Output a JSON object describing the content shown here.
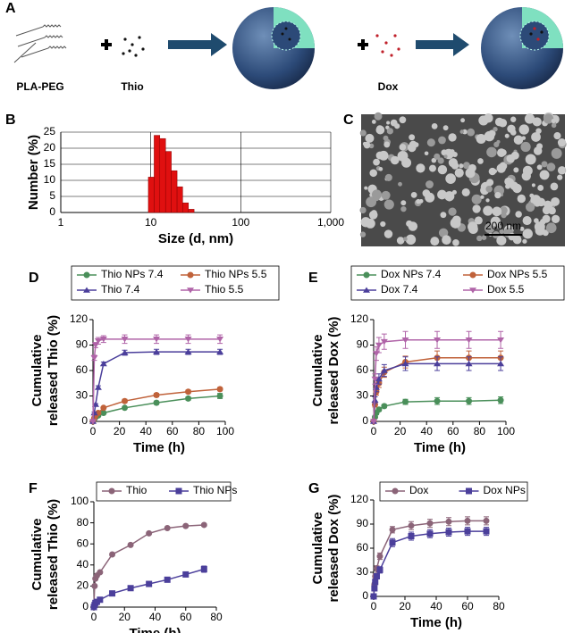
{
  "panel_labels": [
    "A",
    "B",
    "C",
    "D",
    "E",
    "F",
    "G"
  ],
  "schematic": {
    "labels": [
      "PLA-PEG",
      "Thio",
      "Dox"
    ]
  },
  "micrograph": {
    "scale_bar": "200 nm"
  },
  "chart_data": [
    {
      "type": "histogram",
      "xlabel": "Size (d, nm)",
      "ylabel": [
        "Number (%)"
      ],
      "xscale": "log",
      "grid": true,
      "color": "#e01010",
      "bins": [
        9.4,
        10.9,
        12.6,
        14.6,
        16.9,
        19.6,
        22.6,
        26.2,
        30.3
      ],
      "values": [
        11,
        24,
        23,
        19,
        13,
        8,
        3,
        1
      ],
      "xlim": [
        1,
        1000
      ],
      "xticks": [
        1,
        10,
        100,
        {
          "value": 1000,
          "label": "1,000"
        }
      ],
      "ylim": [
        0,
        25
      ],
      "yticks": [
        0,
        5,
        10,
        15,
        20,
        25
      ]
    },
    {
      "type": "line",
      "xlabel": "Time (h)",
      "ylabel": [
        "Cumulative",
        "released Thio (%)"
      ],
      "x": [
        0,
        1,
        2,
        4,
        8,
        24,
        48,
        72,
        96
      ],
      "series": [
        {
          "name": "Thio NPs 7.4",
          "color": "#4a8f5a",
          "marker": "circle",
          "values": [
            0,
            3,
            5,
            7,
            10,
            16,
            22,
            27,
            30
          ],
          "errors": [
            0,
            1,
            1,
            1,
            1,
            1,
            2,
            2,
            3
          ]
        },
        {
          "name": "Thio NPs 5.5",
          "color": "#c0623a",
          "marker": "circle",
          "values": [
            0,
            4,
            7,
            10,
            16,
            24,
            31,
            35,
            38
          ],
          "errors": [
            0,
            1,
            1,
            1,
            1,
            2,
            2,
            2,
            2
          ]
        },
        {
          "name": "Thio 7.4",
          "color": "#4b3f9b",
          "marker": "triangle",
          "values": [
            0,
            10,
            20,
            40,
            68,
            81,
            82,
            82,
            82
          ],
          "errors": [
            0,
            1,
            1,
            2,
            2,
            3,
            3,
            3,
            3
          ]
        },
        {
          "name": "Thio 5.5",
          "color": "#b064a8",
          "marker": "triangle-down",
          "values": [
            0,
            75,
            90,
            95,
            97,
            97,
            97,
            97,
            97
          ],
          "errors": [
            0,
            3,
            3,
            4,
            4,
            5,
            5,
            5,
            5
          ]
        }
      ],
      "xlim": [
        0,
        100
      ],
      "xticks": [
        0,
        20,
        40,
        60,
        80,
        100
      ],
      "ylim": [
        0,
        120
      ],
      "yticks": [
        0,
        30,
        60,
        90,
        120
      ]
    },
    {
      "type": "line",
      "xlabel": "Time (h)",
      "ylabel": [
        "Cumulative",
        "released Dox (%)"
      ],
      "x": [
        0,
        1,
        2,
        4,
        8,
        24,
        48,
        72,
        96
      ],
      "series": [
        {
          "name": "Dox NPs 7.4",
          "color": "#4a8f5a",
          "marker": "circle",
          "values": [
            0,
            5,
            10,
            14,
            18,
            23,
            24,
            24,
            25
          ],
          "errors": [
            0,
            1,
            2,
            2,
            2,
            3,
            4,
            4,
            4
          ]
        },
        {
          "name": "Dox NPs 5.5",
          "color": "#c0623a",
          "marker": "circle",
          "values": [
            0,
            20,
            35,
            45,
            58,
            70,
            75,
            75,
            75
          ],
          "errors": [
            0,
            3,
            4,
            5,
            6,
            7,
            8,
            8,
            8
          ]
        },
        {
          "name": "Dox 7.4",
          "color": "#4b3f9b",
          "marker": "triangle",
          "values": [
            0,
            25,
            40,
            50,
            60,
            68,
            68,
            68,
            68
          ],
          "errors": [
            0,
            4,
            5,
            6,
            7,
            8,
            8,
            8,
            8
          ]
        },
        {
          "name": "Dox 5.5",
          "color": "#b064a8",
          "marker": "triangle-down",
          "values": [
            0,
            50,
            80,
            90,
            94,
            96,
            96,
            96,
            96
          ],
          "errors": [
            0,
            6,
            8,
            9,
            9,
            10,
            10,
            10,
            10
          ]
        }
      ],
      "xlim": [
        0,
        100
      ],
      "xticks": [
        0,
        20,
        40,
        60,
        80,
        100
      ],
      "ylim": [
        0,
        120
      ],
      "yticks": [
        0,
        30,
        60,
        90,
        120
      ]
    },
    {
      "type": "line",
      "xlabel": "Time (h)",
      "ylabel": [
        "Cumulative",
        "released Thio (%)"
      ],
      "x": [
        0,
        0.5,
        1,
        2,
        4,
        12,
        24,
        36,
        48,
        60,
        72
      ],
      "series": [
        {
          "name": "Thio",
          "color": "#8b6478",
          "marker": "circle",
          "values": [
            0,
            20,
            27,
            30,
            33,
            50,
            59,
            70,
            75,
            77,
            78
          ],
          "errors": [
            0,
            1,
            1,
            1,
            1,
            1,
            1,
            1,
            1,
            1,
            1
          ]
        },
        {
          "name": "Thio NPs",
          "color": "#4b3f9b",
          "marker": "square",
          "values": [
            0,
            2,
            4,
            5,
            7,
            13,
            18,
            22,
            26,
            31,
            36
          ],
          "errors": [
            0,
            1,
            1,
            1,
            1,
            1,
            1,
            1,
            1,
            2,
            3
          ]
        }
      ],
      "xlim": [
        0,
        80
      ],
      "xticks": [
        0,
        20,
        40,
        60,
        80
      ],
      "ylim": [
        0,
        100
      ],
      "yticks": [
        0,
        20,
        40,
        60,
        80,
        100
      ]
    },
    {
      "type": "line",
      "xlabel": "Time (h)",
      "ylabel": [
        "Cumulative",
        "released Dox (%)"
      ],
      "x": [
        0,
        0.5,
        1,
        2,
        4,
        12,
        24,
        36,
        48,
        60,
        72
      ],
      "series": [
        {
          "name": "Dox",
          "color": "#8b6478",
          "marker": "circle",
          "values": [
            0,
            15,
            25,
            35,
            50,
            83,
            88,
            91,
            93,
            94,
            94
          ],
          "errors": [
            0,
            2,
            3,
            3,
            4,
            4,
            5,
            5,
            5,
            5,
            5
          ]
        },
        {
          "name": "Dox NPs",
          "color": "#4b3f9b",
          "marker": "square",
          "values": [
            0,
            10,
            18,
            25,
            33,
            67,
            75,
            78,
            80,
            81,
            81
          ],
          "errors": [
            0,
            2,
            3,
            3,
            4,
            5,
            5,
            5,
            5,
            5,
            5
          ]
        }
      ],
      "xlim": [
        0,
        80
      ],
      "xticks": [
        0,
        20,
        40,
        60,
        80
      ],
      "ylim": [
        0,
        120
      ],
      "yticks": [
        0,
        30,
        60,
        90,
        120
      ]
    }
  ]
}
